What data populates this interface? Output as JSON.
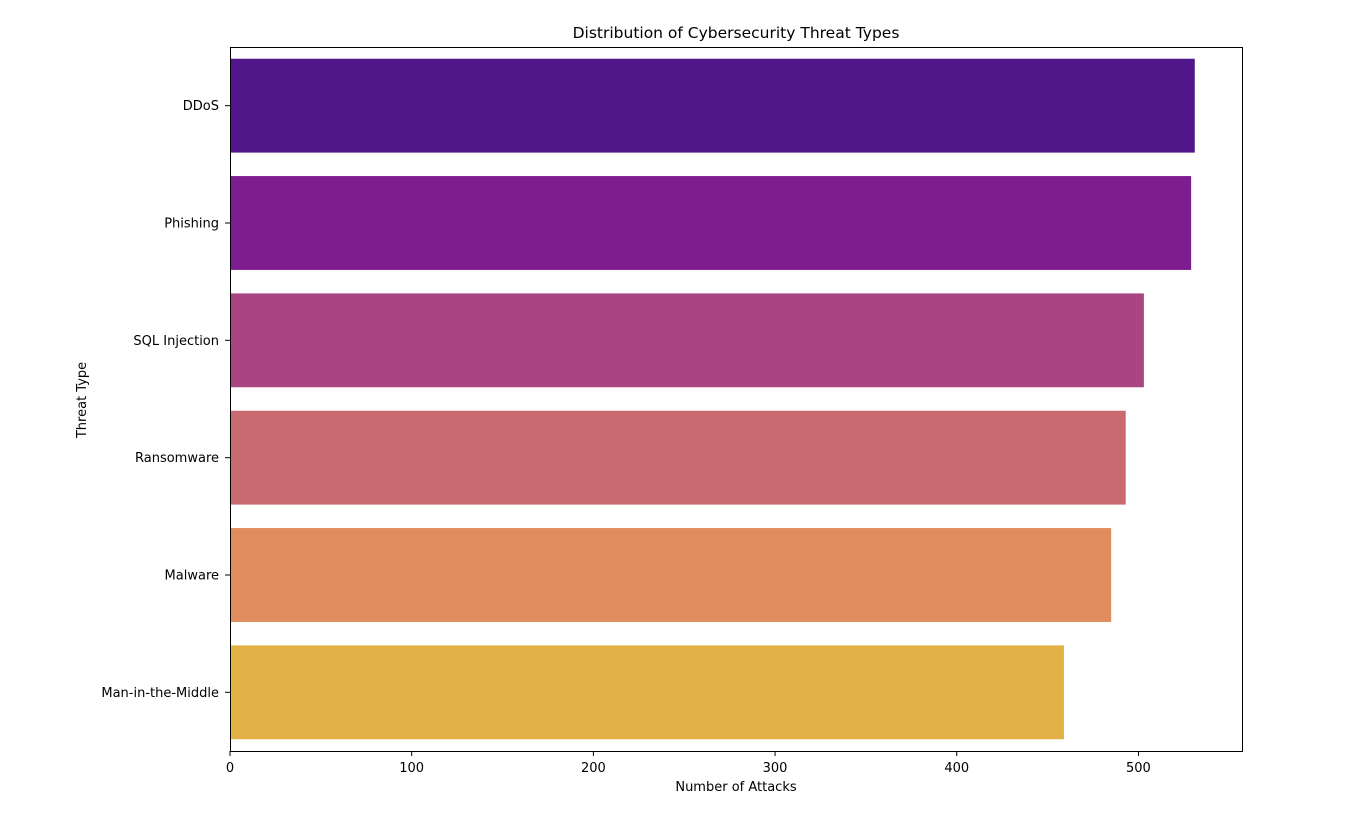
{
  "chart_data": {
    "type": "bar",
    "orientation": "horizontal",
    "title": "Distribution of Cybersecurity Threat Types",
    "xlabel": "Number of Attacks",
    "ylabel": "Threat Type",
    "categories": [
      "DDoS",
      "Phishing",
      "SQL Injection",
      "Ransomware",
      "Malware",
      "Man-in-the-Middle"
    ],
    "values": [
      531,
      529,
      503,
      493,
      485,
      459
    ],
    "colors": [
      "#52168b",
      "#7e1d8f",
      "#a84582",
      "#c96a71",
      "#df8c5e",
      "#e2b246"
    ],
    "xlim": [
      0,
      557
    ],
    "xticks": [
      0,
      100,
      200,
      300,
      400,
      500
    ],
    "xtick_labels": [
      "0",
      "100",
      "200",
      "300",
      "400",
      "500"
    ],
    "grid": false,
    "legend": false
  }
}
